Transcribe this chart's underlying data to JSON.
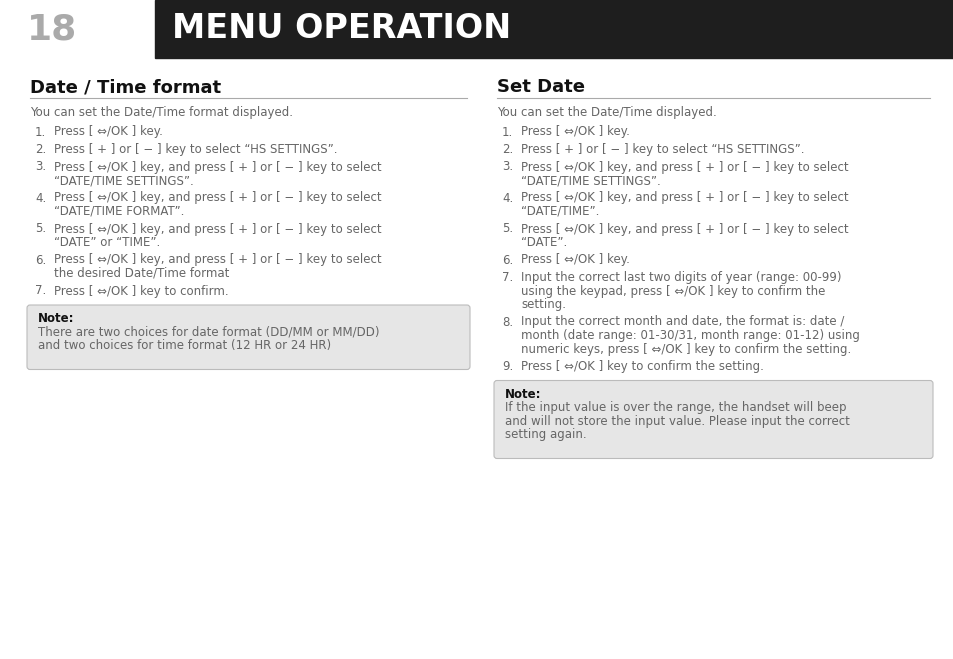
{
  "page_bg": "#ffffff",
  "header_bg": "#1e1e1e",
  "header_text": "MENU OPERATION",
  "header_number": "18",
  "header_text_color": "#ffffff",
  "header_number_color": "#aaaaaa",
  "left_section_title": "Date / Time format",
  "right_section_title": "Set Date",
  "left_intro": "You can set the Date/Time format displayed.",
  "right_intro": "You can set the Date/Time displayed.",
  "left_steps": [
    "Press [ ⇔/OK ] key.",
    "Press [ + ] or [ − ] key to select “HS SETTINGS”.",
    "Press [ ⇔/OK ] key, and press [ + ] or [ − ] key to select\n“DATE/TIME SETTINGS”.",
    "Press [ ⇔/OK ] key, and press [ + ] or [ − ] key to select\n“DATE/TIME FORMAT”.",
    "Press [ ⇔/OK ] key, and press [ + ] or [ − ] key to select\n“DATE” or “TIME”.",
    "Press [ ⇔/OK ] key, and press [ + ] or [ − ] key to select\nthe desired Date/Time format",
    "Press [ ⇔/OK ] key to confirm."
  ],
  "right_steps": [
    "Press [ ⇔/OK ] key.",
    "Press [ + ] or [ − ] key to select “HS SETTINGS”.",
    "Press [ ⇔/OK ] key, and press [ + ] or [ − ] key to select\n“DATE/TIME SETTINGS”.",
    "Press [ ⇔/OK ] key, and press [ + ] or [ − ] key to select\n“DATE/TIME”.",
    "Press [ ⇔/OK ] key, and press [ + ] or [ − ] key to select\n“DATE”.",
    "Press [ ⇔/OK ] key.",
    "Input the correct last two digits of year (range: 00-99)\nusing the keypad, press [ ⇔/OK ] key to confirm the\nsetting.",
    "Input the correct month and date, the format is: date /\nmonth (date range: 01-30/31, month range: 01-12) using\nnumeric keys, press [ ⇔/OK ] key to confirm the setting.",
    "Press [ ⇔/OK ] key to confirm the setting."
  ],
  "left_note_title": "Note:",
  "left_note_body": "There are two choices for date format (DD/MM or MM/DD)\nand two choices for time format (12 HR or 24 HR)",
  "right_note_title": "Note:",
  "right_note_body": "If the input value is over the range, the handset will beep\nand will not store the input value. Please input the correct\nsetting again.",
  "note_bg": "#e6e6e6",
  "note_border": "#bbbbbb",
  "text_color": "#666666",
  "title_color": "#111111",
  "divider_color": "#aaaaaa"
}
